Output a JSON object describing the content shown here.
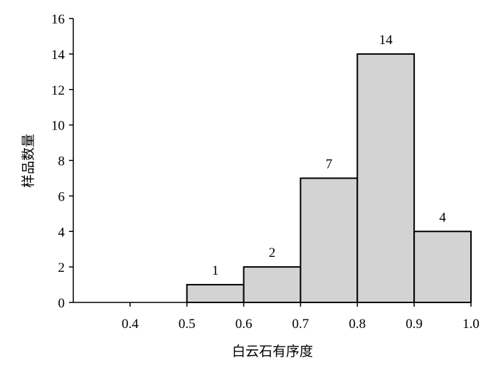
{
  "chart_data": {
    "type": "bar",
    "subtype": "histogram",
    "bins": [
      [
        0.5,
        0.6
      ],
      [
        0.6,
        0.7
      ],
      [
        0.7,
        0.8
      ],
      [
        0.8,
        0.9
      ],
      [
        0.9,
        1.0
      ]
    ],
    "values": [
      1,
      2,
      7,
      14,
      4
    ],
    "data_labels": [
      "1",
      "2",
      "7",
      "14",
      "4"
    ],
    "xlabel": "白云石有序度",
    "ylabel": "样品数量",
    "xlim": [
      0.3,
      1.0
    ],
    "ylim": [
      0,
      16
    ],
    "xticks": [
      "0.4",
      "0.5",
      "0.6",
      "0.7",
      "0.8",
      "0.9",
      "1.0"
    ],
    "yticks": [
      "0",
      "2",
      "4",
      "6",
      "8",
      "10",
      "12",
      "14",
      "16"
    ],
    "grid": false,
    "bar_color": "#d3d3d3",
    "edge_color": "#000000"
  }
}
